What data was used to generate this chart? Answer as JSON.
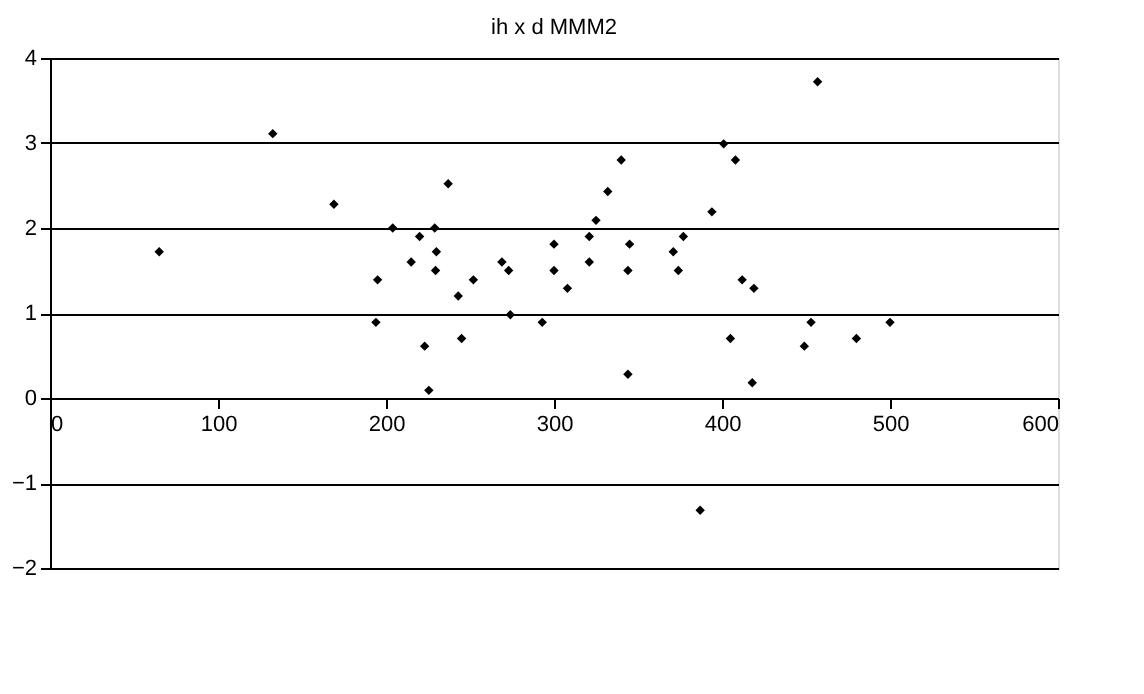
{
  "chart_data": {
    "type": "scatter",
    "title": "ih  x d MMM2",
    "x": [
      65,
      132.6,
      169,
      204,
      220,
      229,
      230,
      215,
      229.5,
      237,
      195,
      194,
      243,
      252,
      269,
      273,
      274,
      293,
      223,
      245,
      225.5,
      456.9,
      401,
      408,
      340,
      332,
      325,
      394,
      321,
      300,
      345,
      377,
      371,
      321,
      300,
      344,
      374,
      308,
      412,
      419,
      453,
      500,
      405,
      480,
      449,
      344,
      418,
      387
    ],
    "series": [
      {
        "color": "#000000",
        "values": [
          1.72,
          3.11,
          2.28,
          2.0,
          1.9,
          2.0,
          1.72,
          1.6,
          1.5,
          2.52,
          1.39,
          0.89,
          1.2,
          1.39,
          1.6,
          1.5,
          0.98,
          0.89,
          0.61,
          0.7,
          0.09,
          3.72,
          2.99,
          2.8,
          2.8,
          2.43,
          2.09,
          2.19,
          1.9,
          1.81,
          1.81,
          1.9,
          1.72,
          1.6,
          1.5,
          1.5,
          1.5,
          1.29,
          1.39,
          1.29,
          0.89,
          0.89,
          0.7,
          0.7,
          0.61,
          0.28,
          0.18,
          -1.32
        ]
      }
    ],
    "xlim": [
      0,
      600
    ],
    "xticks": [
      0,
      100,
      200,
      300,
      400,
      500,
      600
    ],
    "ylim": [
      -2,
      4
    ],
    "yticks": [
      -2,
      -1,
      0,
      1,
      2,
      3,
      4
    ],
    "grid": "y",
    "marker": "diamond"
  }
}
